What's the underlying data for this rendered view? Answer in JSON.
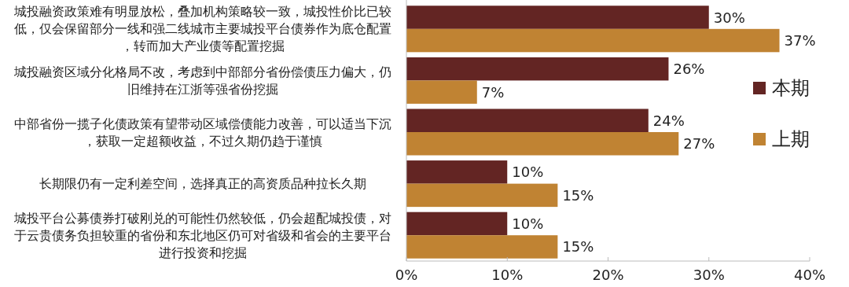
{
  "chart_data": {
    "type": "bar",
    "orientation": "horizontal",
    "categories": [
      "城投融资政策难有明显放松，叠加机构策略较一致，城投性价比已较低，仅会保留部分一线和强二线城市主要城投平台债券作为底仓配置，转而加大产业债等配置挖掘",
      "城投融资区域分化格局不改，考虑到中部部分省份偿债压力偏大，仍旧维持在江浙等强省份挖掘",
      "中部省份一揽子化债政策有望带动区域偿债能力改善，可以适当下沉，获取一定超额收益，不过久期仍趋于谨慎",
      "长期限仍有一定利差空间，选择真正的高资质品种拉长久期",
      "城投平台公募债券打破刚兑的可能性仍然较低，仍会超配城投债，对于云贵债务负担较重的省份和东北地区仍可对省级和省会的主要平台进行投资和挖掘"
    ],
    "series": [
      {
        "name": "本期",
        "color": "#632523",
        "values": [
          30,
          26,
          24,
          10,
          10
        ]
      },
      {
        "name": "上期",
        "color": "#c08333",
        "values": [
          37,
          7,
          27,
          15,
          15
        ]
      }
    ],
    "xlim": [
      0,
      40
    ],
    "xticks": [
      {
        "value": 0,
        "label": "0%"
      },
      {
        "value": 10,
        "label": "10%"
      },
      {
        "value": 20,
        "label": "20%"
      },
      {
        "value": 30,
        "label": "30%"
      },
      {
        "value": 40,
        "label": "40%"
      }
    ],
    "value_labels": [
      [
        "30%",
        "26%",
        "24%",
        "10%",
        "10%"
      ],
      [
        "37%",
        "7%",
        "27%",
        "15%",
        "15%"
      ]
    ],
    "legend": "right",
    "grid": false
  }
}
